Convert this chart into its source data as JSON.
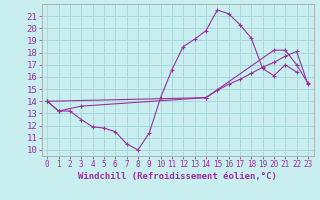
{
  "background_color": "#c8eef0",
  "grid_color": "#aad8dc",
  "line_color": "#993399",
  "xlabel": "Windchill (Refroidissement éolien,°C)",
  "xlim": [
    -0.5,
    23.5
  ],
  "ylim": [
    9.5,
    22.0
  ],
  "xticks": [
    0,
    1,
    2,
    3,
    4,
    5,
    6,
    7,
    8,
    9,
    10,
    11,
    12,
    13,
    14,
    15,
    16,
    17,
    18,
    19,
    20,
    21,
    22,
    23
  ],
  "yticks": [
    10,
    11,
    12,
    13,
    14,
    15,
    16,
    17,
    18,
    19,
    20,
    21
  ],
  "line1_x": [
    0,
    1,
    2,
    3,
    4,
    5,
    6,
    7,
    8,
    9,
    10,
    11,
    12,
    13,
    14,
    15,
    16,
    17,
    18,
    19,
    20,
    21,
    22
  ],
  "line1_y": [
    14.0,
    13.2,
    13.2,
    12.5,
    11.9,
    11.8,
    11.5,
    10.5,
    10.0,
    11.4,
    14.3,
    16.6,
    18.5,
    19.1,
    19.8,
    21.5,
    21.2,
    20.3,
    19.2,
    16.7,
    16.1,
    17.0,
    16.4
  ],
  "line2_x": [
    0,
    1,
    3,
    14,
    15,
    16,
    17,
    18,
    19,
    20,
    21,
    22,
    23
  ],
  "line2_y": [
    14.0,
    13.2,
    13.6,
    14.3,
    14.9,
    15.4,
    15.8,
    16.3,
    16.8,
    17.2,
    17.7,
    18.1,
    15.4
  ],
  "line3_x": [
    0,
    14,
    20,
    21,
    22,
    23
  ],
  "line3_y": [
    14.0,
    14.3,
    18.2,
    18.2,
    17.0,
    15.5
  ],
  "xlabel_fontsize": 6.5,
  "ytick_fontsize": 6.5,
  "xtick_fontsize": 5.5
}
